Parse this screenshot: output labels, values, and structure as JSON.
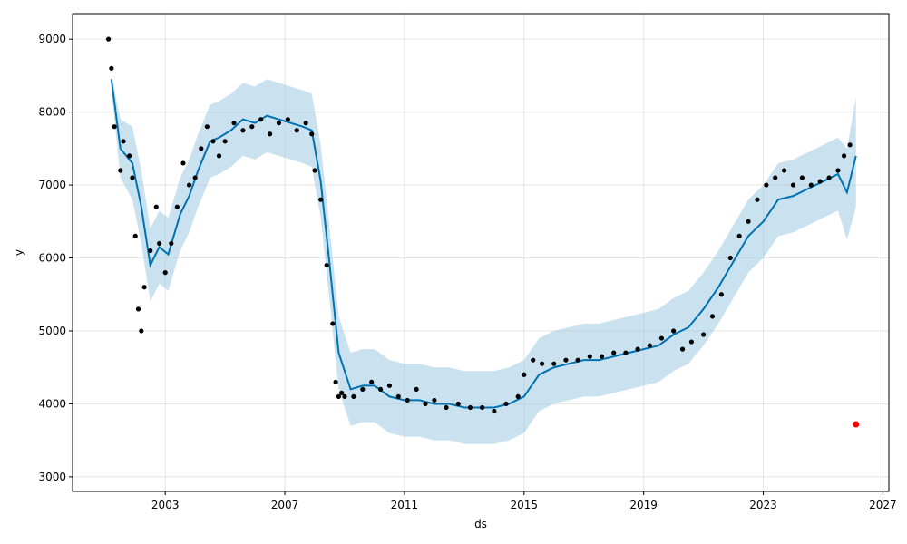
{
  "chart_data": {
    "type": "line",
    "title": "",
    "xlabel": "ds",
    "ylabel": "y",
    "xlim": [
      1999.9,
      2027.2
    ],
    "ylim": [
      2800,
      9350
    ],
    "x_ticks": [
      2003,
      2007,
      2011,
      2015,
      2019,
      2023,
      2027
    ],
    "y_ticks": [
      3000,
      4000,
      5000,
      6000,
      7000,
      8000,
      9000
    ],
    "grid": true,
    "colors": {
      "forecast": "#0072B2",
      "interval": "#9ecae1",
      "observed": "#000000",
      "highlight": "#ff0000"
    },
    "series": [
      {
        "kind": "forecast",
        "x": [
          2001.2,
          2001.5,
          2001.9,
          2002.2,
          2002.5,
          2002.8,
          2003.1,
          2003.5,
          2003.8,
          2004.1,
          2004.5,
          2004.8,
          2005.2,
          2005.6,
          2006.0,
          2006.4,
          2006.8,
          2007.2,
          2007.6,
          2007.9,
          2008.2,
          2008.5,
          2008.8,
          2009.2,
          2009.6,
          2010.0,
          2010.5,
          2011.0,
          2011.5,
          2012.0,
          2012.5,
          2013.0,
          2013.5,
          2014.0,
          2014.5,
          2015.0,
          2015.5,
          2016.0,
          2016.5,
          2017.0,
          2017.5,
          2018.0,
          2018.5,
          2019.0,
          2019.5,
          2020.0,
          2020.5,
          2021.0,
          2021.5,
          2022.0,
          2022.5,
          2023.0,
          2023.5,
          2024.0,
          2024.5,
          2025.0,
          2025.5,
          2025.8,
          2026.1
        ],
        "values": [
          8450,
          7500,
          7300,
          6700,
          5900,
          6150,
          6050,
          6600,
          6850,
          7200,
          7600,
          7650,
          7750,
          7900,
          7850,
          7950,
          7900,
          7850,
          7800,
          7750,
          7050,
          5900,
          4700,
          4200,
          4250,
          4250,
          4100,
          4050,
          4050,
          4000,
          4000,
          3950,
          3950,
          3950,
          4000,
          4100,
          4400,
          4500,
          4550,
          4600,
          4600,
          4650,
          4700,
          4750,
          4800,
          4950,
          5050,
          5300,
          5600,
          5950,
          6300,
          6500,
          6800,
          6850,
          6950,
          7050,
          7150,
          6900,
          7400
        ]
      },
      {
        "kind": "interval_upper",
        "x": [
          2001.2,
          2001.5,
          2001.9,
          2002.2,
          2002.5,
          2002.8,
          2003.1,
          2003.5,
          2003.8,
          2004.1,
          2004.5,
          2004.8,
          2005.2,
          2005.6,
          2006.0,
          2006.4,
          2006.8,
          2007.2,
          2007.6,
          2007.9,
          2008.2,
          2008.5,
          2008.8,
          2009.2,
          2009.6,
          2010.0,
          2010.5,
          2011.0,
          2011.5,
          2012.0,
          2012.5,
          2013.0,
          2013.5,
          2014.0,
          2014.5,
          2015.0,
          2015.5,
          2016.0,
          2016.5,
          2017.0,
          2017.5,
          2018.0,
          2018.5,
          2019.0,
          2019.5,
          2020.0,
          2020.5,
          2021.0,
          2021.5,
          2022.0,
          2022.5,
          2023.0,
          2023.5,
          2024.0,
          2024.5,
          2025.0,
          2025.5,
          2025.8,
          2026.1
        ],
        "values": [
          8500,
          7900,
          7800,
          7200,
          6400,
          6650,
          6550,
          7100,
          7350,
          7700,
          8100,
          8150,
          8250,
          8400,
          8350,
          8450,
          8400,
          8350,
          8300,
          8250,
          7550,
          6400,
          5200,
          4700,
          4750,
          4750,
          4600,
          4550,
          4550,
          4500,
          4500,
          4450,
          4450,
          4450,
          4500,
          4600,
          4900,
          5000,
          5050,
          5100,
          5100,
          5150,
          5200,
          5250,
          5300,
          5450,
          5550,
          5800,
          6100,
          6450,
          6800,
          7000,
          7300,
          7350,
          7450,
          7550,
          7650,
          7500,
          8200
        ]
      },
      {
        "kind": "interval_lower",
        "x": [
          2001.2,
          2001.5,
          2001.9,
          2002.2,
          2002.5,
          2002.8,
          2003.1,
          2003.5,
          2003.8,
          2004.1,
          2004.5,
          2004.8,
          2005.2,
          2005.6,
          2006.0,
          2006.4,
          2006.8,
          2007.2,
          2007.6,
          2007.9,
          2008.2,
          2008.5,
          2008.8,
          2009.2,
          2009.6,
          2010.0,
          2010.5,
          2011.0,
          2011.5,
          2012.0,
          2012.5,
          2013.0,
          2013.5,
          2014.0,
          2014.5,
          2015.0,
          2015.5,
          2016.0,
          2016.5,
          2017.0,
          2017.5,
          2018.0,
          2018.5,
          2019.0,
          2019.5,
          2020.0,
          2020.5,
          2021.0,
          2021.5,
          2022.0,
          2022.5,
          2023.0,
          2023.5,
          2024.0,
          2024.5,
          2025.0,
          2025.5,
          2025.8,
          2026.1
        ],
        "values": [
          8300,
          7100,
          6800,
          6200,
          5400,
          5650,
          5550,
          6100,
          6350,
          6700,
          7100,
          7150,
          7250,
          7400,
          7350,
          7450,
          7400,
          7350,
          7300,
          7250,
          6550,
          5400,
          4200,
          3700,
          3750,
          3750,
          3600,
          3550,
          3550,
          3500,
          3500,
          3450,
          3450,
          3450,
          3500,
          3600,
          3900,
          4000,
          4050,
          4100,
          4100,
          4150,
          4200,
          4250,
          4300,
          4450,
          4550,
          4800,
          5100,
          5450,
          5800,
          6000,
          6300,
          6350,
          6450,
          6550,
          6650,
          6250,
          6700
        ]
      },
      {
        "kind": "observed",
        "x": [
          2001.1,
          2001.2,
          2001.3,
          2001.5,
          2001.6,
          2001.8,
          2001.9,
          2002.0,
          2002.1,
          2002.2,
          2002.3,
          2002.5,
          2002.7,
          2002.8,
          2003.0,
          2003.2,
          2003.4,
          2003.6,
          2003.8,
          2004.0,
          2004.2,
          2004.4,
          2004.6,
          2004.8,
          2005.0,
          2005.3,
          2005.6,
          2005.9,
          2006.2,
          2006.5,
          2006.8,
          2007.1,
          2007.4,
          2007.7,
          2007.9,
          2008.0,
          2008.2,
          2008.4,
          2008.6,
          2008.7,
          2008.8,
          2008.9,
          2009.0,
          2009.3,
          2009.6,
          2009.9,
          2010.2,
          2010.5,
          2010.8,
          2011.1,
          2011.4,
          2011.7,
          2012.0,
          2012.4,
          2012.8,
          2013.2,
          2013.6,
          2014.0,
          2014.4,
          2014.8,
          2015.0,
          2015.3,
          2015.6,
          2016.0,
          2016.4,
          2016.8,
          2017.2,
          2017.6,
          2018.0,
          2018.4,
          2018.8,
          2019.2,
          2019.6,
          2020.0,
          2020.3,
          2020.6,
          2021.0,
          2021.3,
          2021.6,
          2021.9,
          2022.2,
          2022.5,
          2022.8,
          2023.1,
          2023.4,
          2023.7,
          2024.0,
          2024.3,
          2024.6,
          2024.9,
          2025.2,
          2025.5,
          2025.7,
          2025.9
        ],
        "values": [
          9000,
          8600,
          7800,
          7200,
          7600,
          7400,
          7100,
          6300,
          5300,
          5000,
          5600,
          6100,
          6700,
          6200,
          5800,
          6200,
          6700,
          7300,
          7000,
          7100,
          7500,
          7800,
          7600,
          7400,
          7600,
          7850,
          7750,
          7800,
          7900,
          7700,
          7850,
          7900,
          7750,
          7850,
          7700,
          7200,
          6800,
          5900,
          5100,
          4300,
          4100,
          4150,
          4100,
          4100,
          4200,
          4300,
          4200,
          4250,
          4100,
          4050,
          4200,
          4000,
          4050,
          3950,
          4000,
          3950,
          3950,
          3900,
          4000,
          4100,
          4400,
          4600,
          4550,
          4550,
          4600,
          4600,
          4650,
          4650,
          4700,
          4700,
          4750,
          4800,
          4900,
          5000,
          4750,
          4850,
          4950,
          5200,
          5500,
          6000,
          6300,
          6500,
          6800,
          7000,
          7100,
          7200,
          7000,
          7100,
          7000,
          7050,
          7100,
          7200,
          7400,
          7550
        ]
      },
      {
        "kind": "highlight",
        "x": [
          2026.1
        ],
        "values": [
          3720
        ]
      }
    ]
  }
}
